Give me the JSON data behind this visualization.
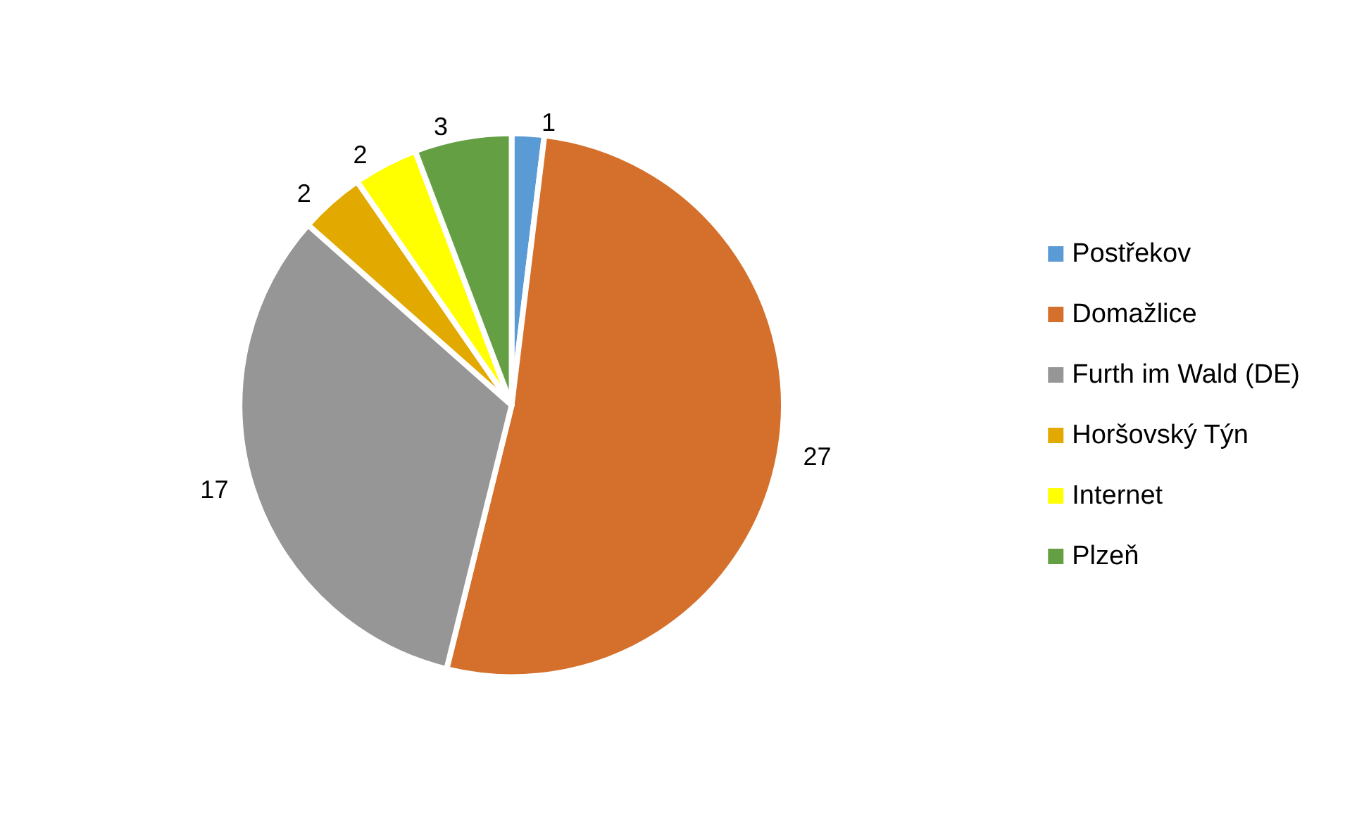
{
  "chart_data": {
    "type": "pie",
    "categories": [
      "Postřekov",
      "Domažlice",
      "Furth im Wald (DE)",
      "Horšovský Týn",
      "Internet",
      "Plzeň"
    ],
    "values": [
      1,
      27,
      17,
      2,
      2,
      3
    ],
    "colors": [
      "#5b9bd5",
      "#d4702b",
      "#969696",
      "#e2a900",
      "#ffff00",
      "#64a043"
    ],
    "data_labels": true,
    "legend": "right"
  }
}
